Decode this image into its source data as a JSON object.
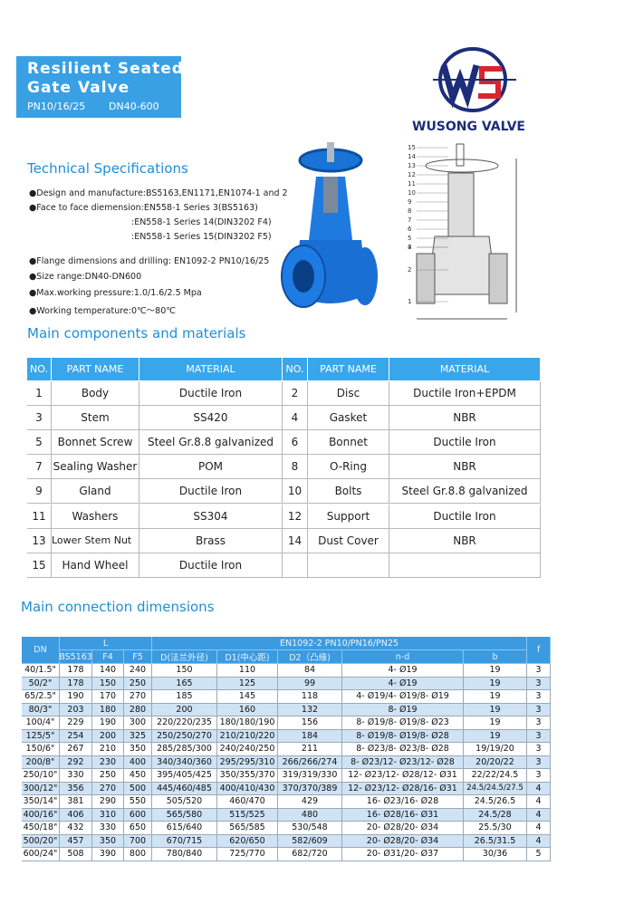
{
  "header": {
    "title": [
      "Resilient Seated",
      "Gate Valve"
    ],
    "subtitle": [
      "PN10/16/25",
      "DN40-600"
    ]
  },
  "logo": {
    "brand": "WUSONG VALVE"
  },
  "specs": {
    "heading": "Technical Specifications",
    "lines": [
      "●Design and manufacture:BS5163,EN1171,EN1074-1 and 2",
      "●Face to face diemension:EN558-1 Series 3(BS5163)",
      ":EN558-1 Series 14(DIN3202 F4)",
      ":EN558-1 Series 15(DIN3202 F5)",
      "●Flange dimensions and drilling: EN1092-2 PN10/16/25",
      "●Size range:DN40-DN600",
      "●Max.working pressure:1.0/1.6/2.5 Mpa",
      "●Working temperature:0℃～80℃"
    ]
  },
  "drawing": {
    "labels": [
      "15",
      "14",
      "13",
      "12",
      "11",
      "10",
      "9",
      "8",
      "7",
      "6",
      "5",
      "4",
      "3",
      "2",
      "1"
    ]
  },
  "components": {
    "heading": "Main components and materials",
    "header": [
      "NO.",
      "PART NAME",
      "MATERIAL",
      "NO.",
      "PART NAME",
      "MATERIAL"
    ],
    "rows": [
      [
        "1",
        "Body",
        "Ductile Iron",
        "2",
        "Disc",
        "Ductile Iron+EPDM"
      ],
      [
        "3",
        "Stem",
        "SS420",
        "4",
        "Gasket",
        "NBR"
      ],
      [
        "5",
        "Bonnet Screw",
        "Steel Gr.8.8 galvanized",
        "6",
        "Bonnet",
        "Ductile Iron"
      ],
      [
        "7",
        "Sealing Washer",
        "POM",
        "8",
        "O-Ring",
        "NBR"
      ],
      [
        "9",
        "Gland",
        "Ductile Iron",
        "10",
        "Bolts",
        "Steel Gr.8.8 galvanized"
      ],
      [
        "11",
        "Washers",
        "SS304",
        "12",
        "Support",
        "Ductile Iron"
      ],
      [
        "13",
        "Lower Stem Nut",
        "Brass",
        "14",
        "Dust Cover",
        "NBR"
      ],
      [
        "15",
        "Hand Wheel",
        "Ductile Iron"
      ]
    ]
  },
  "dimensions": {
    "heading": "Main connection dimensions",
    "header": {
      "dn": "DN",
      "l": "L",
      "en": "EN1092-2    PN10/PN16/PN25",
      "f": "f",
      "sub": [
        "BS5163",
        "F4",
        "F5",
        "D(法兰外径)",
        "D1(中心距)",
        "D2（凸缘)",
        "n-d",
        "b"
      ]
    },
    "rows": [
      [
        "40/1.5\"",
        "178",
        "140",
        "240",
        "150",
        "110",
        "84",
        "4- Ø19",
        "19",
        "3"
      ],
      [
        "50/2\"",
        "178",
        "150",
        "250",
        "165",
        "125",
        "99",
        "4- Ø19",
        "19",
        "3"
      ],
      [
        "65/2.5\"",
        "190",
        "170",
        "270",
        "185",
        "145",
        "118",
        "4- Ø19/4- Ø19/8- Ø19",
        "19",
        "3"
      ],
      [
        "80/3\"",
        "203",
        "180",
        "280",
        "200",
        "160",
        "132",
        "8- Ø19",
        "19",
        "3"
      ],
      [
        "100/4\"",
        "229",
        "190",
        "300",
        "220/220/235",
        "180/180/190",
        "156",
        "8- Ø19/8- Ø19/8- Ø23",
        "19",
        "3"
      ],
      [
        "125/5\"",
        "254",
        "200",
        "325",
        "250/250/270",
        "210/210/220",
        "184",
        "8- Ø19/8- Ø19/8- Ø28",
        "19",
        "3"
      ],
      [
        "150/6\"",
        "267",
        "210",
        "350",
        "285/285/300",
        "240/240/250",
        "211",
        "8- Ø23/8- Ø23/8- Ø28",
        "19/19/20",
        "3"
      ],
      [
        "200/8\"",
        "292",
        "230",
        "400",
        "340/340/360",
        "295/295/310",
        "266/266/274",
        "8- Ø23/12- Ø23/12- Ø28",
        "20/20/22",
        "3"
      ],
      [
        "250/10\"",
        "330",
        "250",
        "450",
        "395/405/425",
        "350/355/370",
        "319/319/330",
        "12- Ø23/12- Ø28/12- Ø31",
        "22/22/24.5",
        "3"
      ],
      [
        "300/12\"",
        "356",
        "270",
        "500",
        "445/460/485",
        "400/410/430",
        "370/370/389",
        "12- Ø23/12- Ø28/16- Ø31",
        "24.5/24.5/27.5",
        "4"
      ],
      [
        "350/14\"",
        "381",
        "290",
        "550",
        "505/520",
        "460/470",
        "429",
        "16- Ø23/16- Ø28",
        "24.5/26.5",
        "4"
      ],
      [
        "400/16\"",
        "406",
        "310",
        "600",
        "565/580",
        "515/525",
        "480",
        "16- Ø28/16- Ø31",
        "24.5/28",
        "4"
      ],
      [
        "450/18\"",
        "432",
        "330",
        "650",
        "615/640",
        "565/585",
        "530/548",
        "20- Ø28/20- Ø34",
        "25.5/30",
        "4"
      ],
      [
        "500/20\"",
        "457",
        "350",
        "700",
        "670/715",
        "620/650",
        "582/609",
        "20- Ø28/20- Ø34",
        "26.5/31.5",
        "4"
      ],
      [
        "600/24\"",
        "508",
        "390",
        "800",
        "780/840",
        "725/770",
        "682/720",
        "20- Ø31/20- Ø37",
        "30/36",
        "5"
      ]
    ]
  }
}
